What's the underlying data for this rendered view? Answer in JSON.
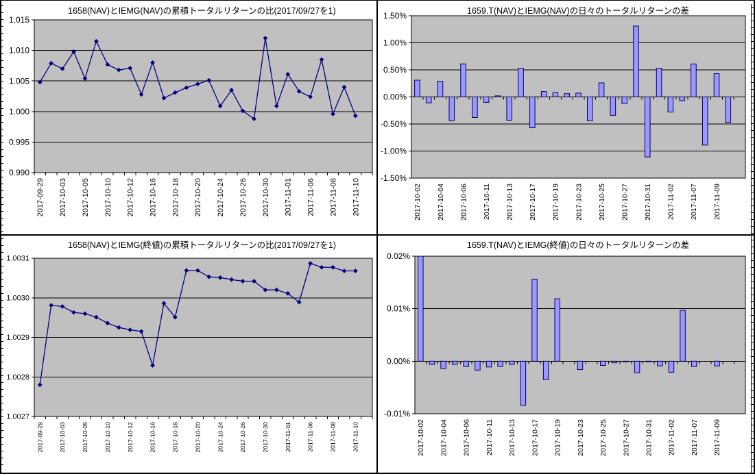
{
  "colors": {
    "plot_bg": "#c0c0c0",
    "grid": "#000000",
    "axis": "#000000",
    "text": "#000000",
    "line_series": "#000080",
    "marker": "#000080",
    "bar_fill": "#9999ff",
    "bar_stroke": "#000060",
    "panel_bg": "#ffffff",
    "frame": "#000000"
  },
  "chart_data": [
    {
      "type": "line",
      "title": "1658(NAV)とIEMG(NAV)の累積トータルリターンの比(2017/09/27を1)",
      "ylabel": "",
      "xlabel": "",
      "ylim": [
        0.99,
        1.015
      ],
      "ytick_values": [
        1.015,
        1.01,
        1.005,
        1.0,
        0.995,
        0.99
      ],
      "ytick_labels": [
        "1.015",
        "1.010",
        "1.005",
        "1.000",
        "0.995",
        "0.990"
      ],
      "grid": true,
      "legend": "none",
      "label_every": 2,
      "n_slots": 30,
      "categories": [
        "2017-09-29",
        "2017-10-02",
        "2017-10-03",
        "2017-10-04",
        "2017-10-05",
        "2017-10-06",
        "2017-10-10",
        "2017-10-11",
        "2017-10-12",
        "2017-10-13",
        "2017-10-16",
        "2017-10-17",
        "2017-10-18",
        "2017-10-19",
        "2017-10-20",
        "2017-10-23",
        "2017-10-24",
        "2017-10-25",
        "2017-10-26",
        "2017-10-27",
        "2017-10-30",
        "2017-10-31",
        "2017-11-01",
        "2017-11-02",
        "2017-11-06",
        "2017-11-07",
        "2017-11-08",
        "2017-11-09",
        "2017-11-10"
      ],
      "values": [
        1.0048,
        1.0079,
        1.007,
        1.0098,
        1.0054,
        1.0115,
        1.0077,
        1.0068,
        1.0071,
        1.0028,
        1.008,
        1.0022,
        1.0031,
        1.0039,
        1.0045,
        1.0051,
        1.0009,
        1.0035,
        1.0001,
        0.9988,
        1.012,
        1.0009,
        1.0061,
        1.0033,
        1.0024,
        1.0085,
        0.9996,
        1.004,
        0.9993
      ]
    },
    {
      "type": "bar",
      "title": "1659.T(NAV)とIEMG(NAV)の日々のトータルリターンの差",
      "ylabel": "",
      "xlabel": "",
      "ylim": [
        -1.5,
        1.5
      ],
      "ytick_values": [
        1.5,
        1.0,
        0.5,
        0.0,
        -0.5,
        -1.0,
        -1.5
      ],
      "ytick_labels": [
        "1.50%",
        "1.00%",
        "0.50%",
        "0.00%",
        "-0.50%",
        "-1.00%",
        "-1.50%"
      ],
      "grid": true,
      "legend": "none",
      "label_every": 2,
      "n_slots": 29,
      "axis_cross": 0,
      "categories": [
        "2017-10-02",
        "2017-10-03",
        "2017-10-04",
        "2017-10-05",
        "2017-10-06",
        "2017-10-10",
        "2017-10-11",
        "2017-10-12",
        "2017-10-13",
        "2017-10-16",
        "2017-10-17",
        "2017-10-18",
        "2017-10-19",
        "2017-10-20",
        "2017-10-23",
        "2017-10-24",
        "2017-10-25",
        "2017-10-26",
        "2017-10-27",
        "2017-10-30",
        "2017-10-31",
        "2017-11-01",
        "2017-11-02",
        "2017-11-06",
        "2017-11-07",
        "2017-11-08",
        "2017-11-09",
        "2017-11-10"
      ],
      "values": [
        0.31,
        -0.11,
        0.29,
        -0.44,
        0.61,
        -0.38,
        -0.1,
        0.02,
        -0.43,
        0.53,
        -0.57,
        0.1,
        0.08,
        0.06,
        0.07,
        -0.44,
        0.26,
        -0.34,
        -0.12,
        1.31,
        -1.11,
        0.53,
        -0.28,
        -0.07,
        0.61,
        -0.89,
        0.43,
        -0.47
      ]
    },
    {
      "type": "line",
      "title": "1658(NAV)とIEMG(終値)の累積トータルリターンの比(2017/09/27を1)",
      "ylabel": "",
      "xlabel": "",
      "ylim": [
        1.0027,
        1.0031
      ],
      "ytick_values": [
        1.0031,
        1.003,
        1.0029,
        1.0028,
        1.0027
      ],
      "ytick_labels": [
        "1.0031",
        "1.0030",
        "1.0029",
        "1.0028",
        "1.0027"
      ],
      "grid": true,
      "legend": "none",
      "label_every": 2,
      "n_slots": 30,
      "categories": [
        "2017-09-29",
        "2017-10-02",
        "2017-10-03",
        "2017-10-04",
        "2017-10-05",
        "2017-10-06",
        "2017-10-10",
        "2017-10-11",
        "2017-10-12",
        "2017-10-13",
        "2017-10-16",
        "2017-10-17",
        "2017-10-18",
        "2017-10-19",
        "2017-10-20",
        "2017-10-23",
        "2017-10-24",
        "2017-10-25",
        "2017-10-26",
        "2017-10-27",
        "2017-10-30",
        "2017-10-31",
        "2017-11-01",
        "2017-11-02",
        "2017-11-06",
        "2017-11-07",
        "2017-11-08",
        "2017-11-09",
        "2017-11-10"
      ],
      "values": [
        1.00278,
        1.002981,
        1.002978,
        1.002963,
        1.00296,
        1.002951,
        1.002936,
        1.002925,
        1.002919,
        1.002915,
        1.002829,
        1.002986,
        1.002951,
        1.003069,
        1.003069,
        1.003053,
        1.003051,
        1.003046,
        1.003042,
        1.003042,
        1.00302,
        1.00302,
        1.003011,
        1.002989,
        1.003087,
        1.003077,
        1.003077,
        1.003068,
        1.003068
      ]
    },
    {
      "type": "bar",
      "title": "1659.T(NAV)とIEMG(終値)の日々のトータルリターンの差",
      "ylabel": "",
      "xlabel": "",
      "ylim": [
        -0.01,
        0.02
      ],
      "ytick_values": [
        0.02,
        0.01,
        0.0,
        -0.01
      ],
      "ytick_labels": [
        "0.02%",
        "0.01%",
        "0.00%",
        "-0.01%"
      ],
      "grid": true,
      "legend": "none",
      "label_every": 2,
      "n_slots": 29,
      "axis_cross": 0,
      "categories": [
        "2017-10-02",
        "2017-10-03",
        "2017-10-04",
        "2017-10-05",
        "2017-10-06",
        "2017-10-10",
        "2017-10-11",
        "2017-10-12",
        "2017-10-13",
        "2017-10-16",
        "2017-10-17",
        "2017-10-18",
        "2017-10-19",
        "2017-10-20",
        "2017-10-23",
        "2017-10-24",
        "2017-10-25",
        "2017-10-26",
        "2017-10-27",
        "2017-10-30",
        "2017-10-31",
        "2017-11-01",
        "2017-11-02",
        "2017-11-06",
        "2017-11-07",
        "2017-11-08",
        "2017-11-09",
        "2017-11-10"
      ],
      "values": [
        0.02,
        -0.0006,
        -0.0014,
        -0.0006,
        -0.001,
        -0.0017,
        -0.0011,
        -0.001,
        -0.0006,
        -0.0084,
        0.0156,
        -0.0035,
        0.0119,
        0,
        -0.0016,
        0,
        -0.0008,
        -0.0003,
        -0.0001,
        -0.0022,
        -0.0001,
        -0.0009,
        -0.0021,
        0.0097,
        -0.001,
        0,
        -0.0009,
        0
      ]
    }
  ]
}
